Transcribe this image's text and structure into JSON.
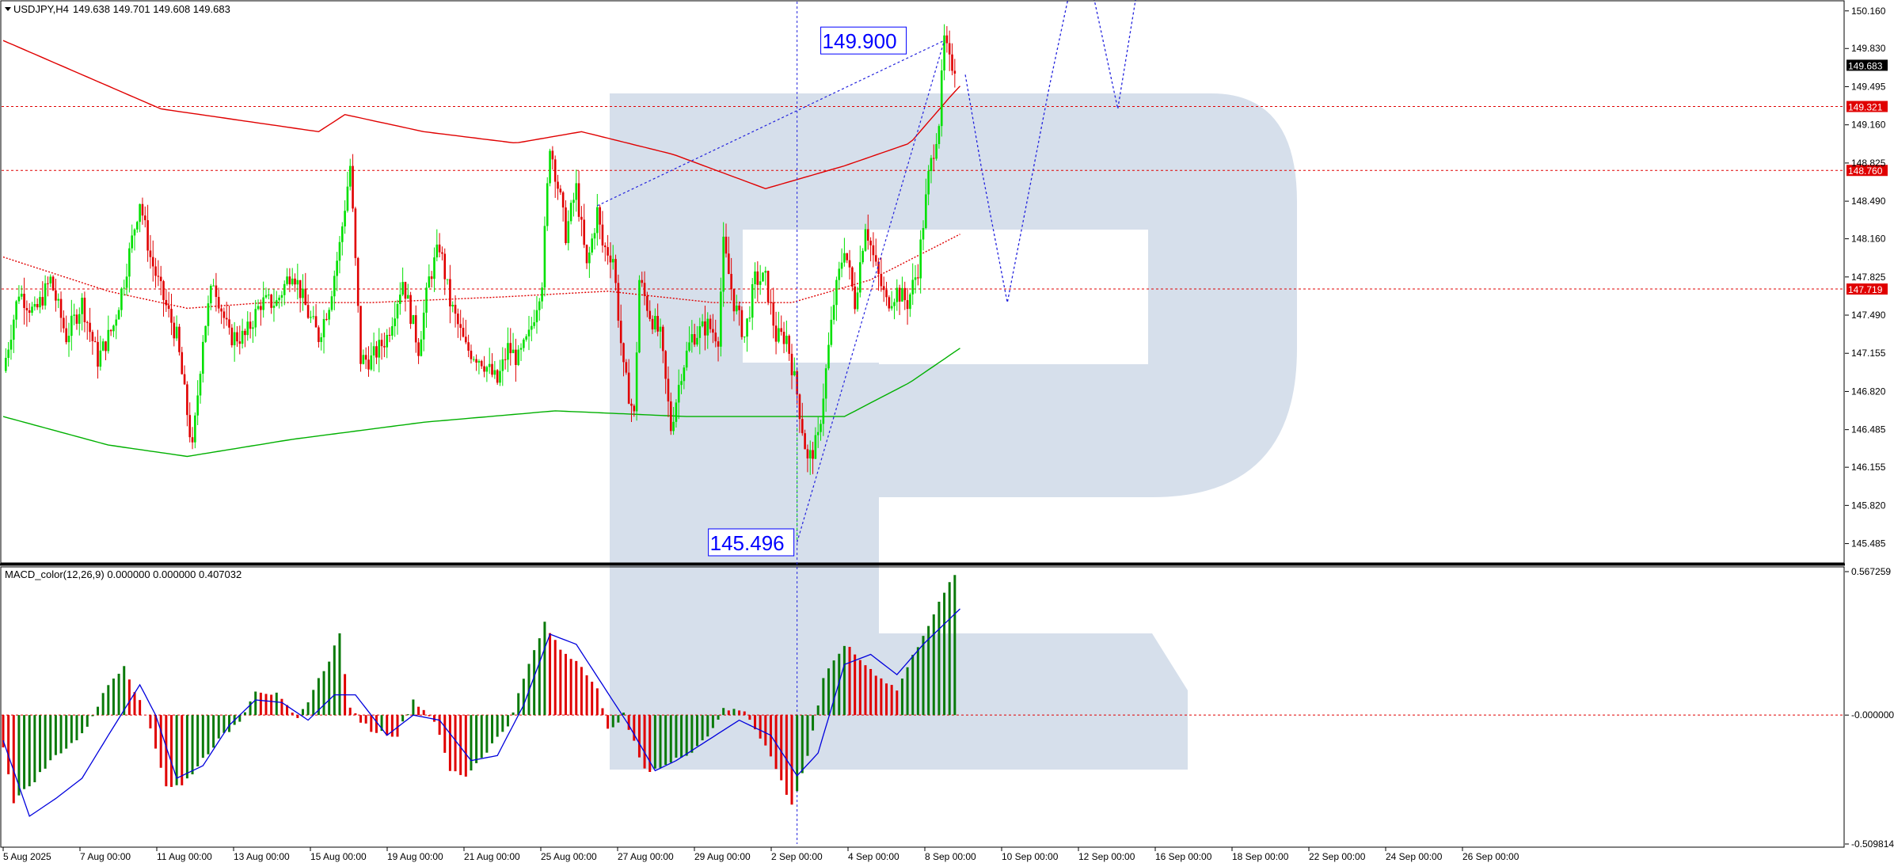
{
  "colors": {
    "bull": "#00e000",
    "bear": "#e00000",
    "hist_up": "#0a7a0a",
    "hist_down": "#e00000",
    "signal": "#0000dd",
    "forecast": "#2222dd",
    "ma_slow": "#e00000",
    "ma_mid": "#00b000",
    "watermark": "#d6dfeb"
  },
  "chart_data": [
    {
      "type": "candlestick",
      "title": "USDJPY,H4",
      "ohlc_header": "149.638 149.701 149.608 149.683",
      "ylim": [
        145.35,
        150.2
      ],
      "y_ticks": [
        "150.160",
        "149.830",
        "149.495",
        "149.160",
        "148.825",
        "148.490",
        "148.160",
        "147.825",
        "147.490",
        "147.155",
        "146.820",
        "146.485",
        "146.155",
        "145.820",
        "145.485"
      ],
      "x_ticks": [
        "5 Aug 2025",
        "7 Aug 00:00",
        "11 Aug 00:00",
        "13 Aug 00:00",
        "15 Aug 00:00",
        "19 Aug 00:00",
        "21 Aug 00:00",
        "25 Aug 00:00",
        "27 Aug 00:00",
        "29 Aug 00:00",
        "2 Sep 00:00",
        "4 Sep 00:00",
        "8 Sep 00:00",
        "10 Sep 00:00",
        "12 Sep 00:00",
        "16 Sep 00:00",
        "18 Sep 00:00",
        "22 Sep 00:00",
        "24 Sep 00:00",
        "26 Sep 00:00"
      ],
      "current_price": "149.683",
      "horizontal_levels": [
        {
          "value": 149.321,
          "label": "149.321"
        },
        {
          "value": 148.76,
          "label": "148.760"
        },
        {
          "value": 147.719,
          "label": "147.719"
        }
      ],
      "annotations": [
        {
          "text": "149.900",
          "value": 149.9
        },
        {
          "text": "145.496",
          "value": 145.496
        }
      ],
      "close_path": [
        [
          0,
          147.0
        ],
        [
          6,
          147.7
        ],
        [
          12,
          147.5
        ],
        [
          18,
          147.8
        ],
        [
          24,
          147.3
        ],
        [
          30,
          147.6
        ],
        [
          36,
          147.1
        ],
        [
          42,
          147.4
        ],
        [
          46,
          147.8
        ],
        [
          52,
          148.5
        ],
        [
          56,
          148.0
        ],
        [
          60,
          147.7
        ],
        [
          66,
          147.3
        ],
        [
          72,
          146.3
        ],
        [
          76,
          147.3
        ],
        [
          80,
          147.8
        ],
        [
          86,
          147.3
        ],
        [
          92,
          147.3
        ],
        [
          98,
          147.6
        ],
        [
          104,
          147.6
        ],
        [
          110,
          147.9
        ],
        [
          116,
          147.5
        ],
        [
          120,
          147.3
        ],
        [
          124,
          147.6
        ],
        [
          128,
          148.1
        ],
        [
          132,
          148.8
        ],
        [
          136,
          147.1
        ],
        [
          140,
          147.1
        ],
        [
          146,
          147.3
        ],
        [
          152,
          147.8
        ],
        [
          158,
          147.2
        ],
        [
          162,
          147.8
        ],
        [
          166,
          148.1
        ],
        [
          170,
          147.6
        ],
        [
          176,
          147.2
        ],
        [
          182,
          147.1
        ],
        [
          188,
          146.9
        ],
        [
          192,
          147.2
        ],
        [
          196,
          147.1
        ],
        [
          200,
          147.3
        ],
        [
          205,
          147.8
        ],
        [
          208,
          149.0
        ],
        [
          212,
          148.5
        ],
        [
          214,
          148.2
        ],
        [
          218,
          148.6
        ],
        [
          222,
          147.9
        ],
        [
          226,
          148.4
        ],
        [
          228,
          148.1
        ],
        [
          232,
          148.0
        ],
        [
          236,
          147.0
        ],
        [
          240,
          146.6
        ],
        [
          242,
          147.8
        ],
        [
          246,
          147.5
        ],
        [
          250,
          147.3
        ],
        [
          254,
          146.5
        ],
        [
          258,
          147.0
        ],
        [
          262,
          147.3
        ],
        [
          268,
          147.4
        ],
        [
          272,
          147.3
        ],
        [
          274,
          148.1
        ],
        [
          278,
          147.6
        ],
        [
          282,
          147.3
        ],
        [
          286,
          147.8
        ],
        [
          290,
          147.8
        ],
        [
          294,
          147.3
        ],
        [
          298,
          147.3
        ],
        [
          302,
          146.8
        ],
        [
          306,
          146.2
        ],
        [
          310,
          146.4
        ],
        [
          312,
          146.8
        ],
        [
          316,
          147.6
        ],
        [
          320,
          148.1
        ],
        [
          324,
          147.6
        ],
        [
          328,
          148.3
        ],
        [
          332,
          147.9
        ],
        [
          336,
          147.6
        ],
        [
          340,
          147.7
        ],
        [
          344,
          147.6
        ],
        [
          348,
          147.9
        ],
        [
          352,
          148.7
        ],
        [
          356,
          149.2
        ],
        [
          358,
          149.9
        ],
        [
          360,
          149.7
        ],
        [
          362,
          149.68
        ]
      ],
      "ma_lines": [
        {
          "style": "solid",
          "color_key": "ma_slow",
          "points": [
            [
              0,
              149.9
            ],
            [
              30,
              149.6
            ],
            [
              60,
              149.3
            ],
            [
              90,
              149.2
            ],
            [
              120,
              149.1
            ],
            [
              130,
              149.25
            ],
            [
              160,
              149.1
            ],
            [
              195,
              149.0
            ],
            [
              220,
              149.1
            ],
            [
              255,
              148.9
            ],
            [
              290,
              148.6
            ],
            [
              305,
              148.7
            ],
            [
              320,
              148.8
            ],
            [
              345,
              149.0
            ],
            [
              360,
              149.4
            ],
            [
              364,
              149.5
            ]
          ]
        },
        {
          "style": "dotted",
          "color_key": "ma_slow",
          "points": [
            [
              0,
              148.0
            ],
            [
              40,
              147.7
            ],
            [
              70,
              147.55
            ],
            [
              100,
              147.6
            ],
            [
              140,
              147.6
            ],
            [
              190,
              147.65
            ],
            [
              230,
              147.7
            ],
            [
              270,
              147.6
            ],
            [
              300,
              147.6
            ],
            [
              330,
              147.8
            ],
            [
              364,
              148.2
            ]
          ]
        },
        {
          "style": "solid",
          "color_key": "ma_mid",
          "points": [
            [
              0,
              146.6
            ],
            [
              40,
              146.35
            ],
            [
              70,
              146.25
            ],
            [
              110,
              146.4
            ],
            [
              160,
              146.55
            ],
            [
              210,
              146.65
            ],
            [
              260,
              146.6
            ],
            [
              300,
              146.6
            ],
            [
              320,
              146.6
            ],
            [
              345,
              146.9
            ],
            [
              364,
              147.2
            ]
          ]
        }
      ],
      "forecast_path": [
        [
          366,
          149.6
        ],
        [
          372,
          148.8
        ],
        [
          382,
          147.6
        ],
        [
          398,
          149.5
        ],
        [
          410,
          150.8
        ],
        [
          424,
          149.3
        ],
        [
          436,
          151.0
        ]
      ]
    },
    {
      "type": "bar",
      "title": "MACD_color(12,26,9) 0.000000 0.000000 0.407032",
      "ylim": [
        -0.5098,
        0.5673
      ],
      "y_ticks": [
        "0.567259",
        "-0.000000",
        "-0.509814"
      ],
      "histogram_path": [
        [
          0,
          -0.12
        ],
        [
          4,
          -0.34
        ],
        [
          10,
          -0.28
        ],
        [
          20,
          -0.16
        ],
        [
          30,
          -0.08
        ],
        [
          40,
          0.12
        ],
        [
          46,
          0.2
        ],
        [
          56,
          -0.05
        ],
        [
          62,
          -0.28
        ],
        [
          68,
          -0.28
        ],
        [
          80,
          -0.12
        ],
        [
          90,
          -0.02
        ],
        [
          96,
          0.1
        ],
        [
          104,
          0.08
        ],
        [
          112,
          -0.02
        ],
        [
          118,
          0.1
        ],
        [
          124,
          0.22
        ],
        [
          128,
          0.32
        ],
        [
          132,
          0.02
        ],
        [
          140,
          -0.06
        ],
        [
          150,
          -0.08
        ],
        [
          156,
          0.06
        ],
        [
          164,
          -0.02
        ],
        [
          170,
          -0.22
        ],
        [
          176,
          -0.24
        ],
        [
          184,
          -0.14
        ],
        [
          192,
          -0.04
        ],
        [
          200,
          0.2
        ],
        [
          206,
          0.36
        ],
        [
          212,
          0.26
        ],
        [
          220,
          0.2
        ],
        [
          226,
          0.1
        ],
        [
          230,
          -0.06
        ],
        [
          236,
          0.0
        ],
        [
          244,
          -0.22
        ],
        [
          252,
          -0.2
        ],
        [
          262,
          -0.14
        ],
        [
          268,
          -0.08
        ],
        [
          274,
          0.02
        ],
        [
          282,
          0.02
        ],
        [
          290,
          -0.12
        ],
        [
          296,
          -0.26
        ],
        [
          300,
          -0.36
        ],
        [
          306,
          -0.16
        ],
        [
          312,
          0.14
        ],
        [
          320,
          0.28
        ],
        [
          330,
          0.18
        ],
        [
          340,
          0.1
        ],
        [
          350,
          0.32
        ],
        [
          358,
          0.48
        ],
        [
          362,
          0.56
        ]
      ],
      "signal_path": [
        [
          0,
          -0.1
        ],
        [
          10,
          -0.4
        ],
        [
          20,
          -0.33
        ],
        [
          30,
          -0.25
        ],
        [
          40,
          -0.08
        ],
        [
          52,
          0.12
        ],
        [
          58,
          0.0
        ],
        [
          66,
          -0.25
        ],
        [
          76,
          -0.2
        ],
        [
          86,
          -0.04
        ],
        [
          96,
          0.06
        ],
        [
          106,
          0.05
        ],
        [
          116,
          -0.02
        ],
        [
          126,
          0.08
        ],
        [
          134,
          0.08
        ],
        [
          146,
          -0.08
        ],
        [
          156,
          0.0
        ],
        [
          166,
          -0.02
        ],
        [
          178,
          -0.18
        ],
        [
          188,
          -0.16
        ],
        [
          198,
          0.04
        ],
        [
          208,
          0.32
        ],
        [
          218,
          0.28
        ],
        [
          228,
          0.12
        ],
        [
          238,
          -0.04
        ],
        [
          248,
          -0.22
        ],
        [
          256,
          -0.18
        ],
        [
          268,
          -0.1
        ],
        [
          280,
          -0.02
        ],
        [
          292,
          -0.08
        ],
        [
          302,
          -0.24
        ],
        [
          310,
          -0.15
        ],
        [
          320,
          0.2
        ],
        [
          330,
          0.24
        ],
        [
          340,
          0.16
        ],
        [
          350,
          0.28
        ],
        [
          364,
          0.42
        ]
      ]
    }
  ]
}
